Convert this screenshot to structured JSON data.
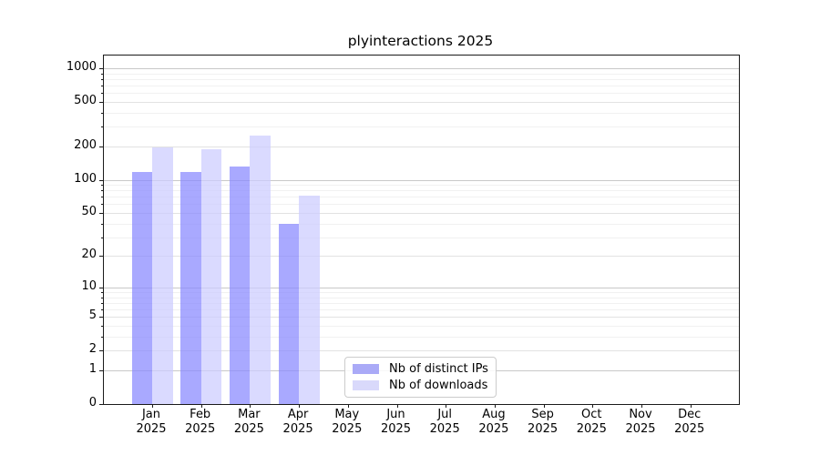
{
  "title": "plyinteractions 2025",
  "chart_data": {
    "type": "bar",
    "title": "plyinteractions 2025",
    "y_scale": "log1p",
    "ylim": [
      0,
      1270
    ],
    "grid": true,
    "legend_position": "lower center",
    "year": "2025",
    "months": [
      "Jan",
      "Feb",
      "Mar",
      "Apr",
      "May",
      "Jun",
      "Jul",
      "Aug",
      "Sep",
      "Oct",
      "Nov",
      "Dec"
    ],
    "categories": [
      "Jan 2025",
      "Feb 2025",
      "Mar 2025",
      "Apr 2025",
      "May 2025",
      "Jun 2025",
      "Jul 2025",
      "Aug 2025",
      "Sep 2025",
      "Oct 2025",
      "Nov 2025",
      "Dec 2025"
    ],
    "y_ticks": [
      0,
      1,
      2,
      5,
      10,
      20,
      50,
      100,
      200,
      500,
      1000
    ],
    "series": [
      {
        "name": "Nb of distinct IPs",
        "color": "#8888ff",
        "opacity": 0.72,
        "legend_color": "#aaaaf7",
        "values": [
          118,
          117,
          132,
          40,
          0,
          0,
          0,
          0,
          0,
          0,
          0,
          0
        ]
      },
      {
        "name": "Nb of downloads",
        "color": "#ccccff",
        "opacity": 0.72,
        "legend_color": "#d9d9fb",
        "values": [
          195,
          189,
          250,
          72,
          0,
          0,
          0,
          0,
          0,
          0,
          0,
          0
        ]
      }
    ]
  }
}
